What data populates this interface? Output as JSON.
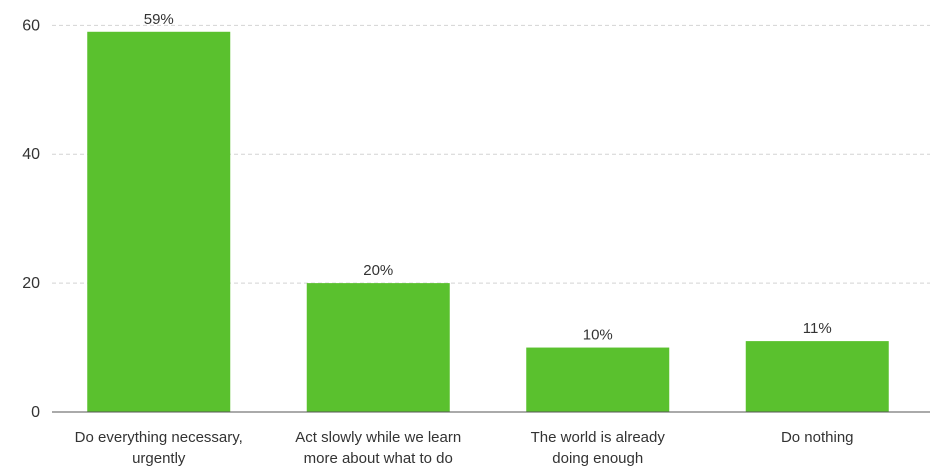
{
  "chart_data": {
    "type": "bar",
    "categories": [
      [
        "Do everything necessary,",
        "urgently"
      ],
      [
        "Act slowly while we learn",
        "more about what to do"
      ],
      [
        "The world is already",
        "doing enough"
      ],
      [
        "Do nothing"
      ]
    ],
    "values": [
      59,
      20,
      10,
      11
    ],
    "data_labels": [
      "59%",
      "20%",
      "10%",
      "11%"
    ],
    "y_ticks": [
      0,
      20,
      40,
      60
    ],
    "ylim": [
      0,
      63
    ],
    "grid": true,
    "legend": "none",
    "bar_color": "#5ac12e"
  }
}
